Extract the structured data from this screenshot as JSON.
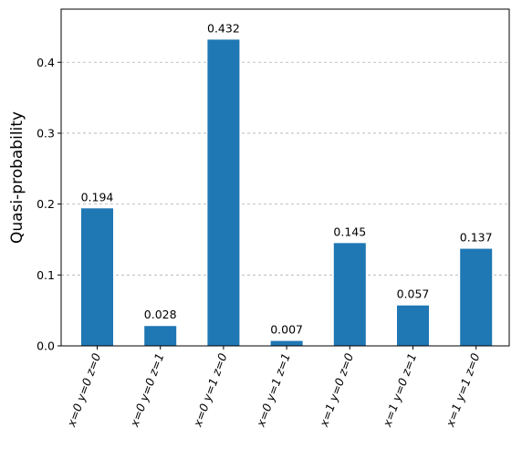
{
  "chart_data": {
    "type": "bar",
    "title": "",
    "xlabel": "",
    "ylabel": "Quasi-probability",
    "categories": [
      "x=0 y=0 z=0",
      "x=0 y=0 z=1",
      "x=0 y=1 z=0",
      "x=0 y=1 z=1",
      "x=1 y=0 z=0",
      "x=1 y=0 z=1",
      "x=1 y=1 z=0"
    ],
    "values": [
      0.194,
      0.028,
      0.432,
      0.007,
      0.145,
      0.057,
      0.137
    ],
    "data_labels": [
      "0.194",
      "0.028",
      "0.432",
      "0.007",
      "0.145",
      "0.057",
      "0.137"
    ],
    "ylim": [
      0,
      0.475
    ],
    "yticks": [
      0.0,
      0.1,
      0.2,
      0.3,
      0.4
    ],
    "ytick_labels": [
      "0.0",
      "0.1",
      "0.2",
      "0.3",
      "0.4"
    ],
    "grid": "horizontal-dashed",
    "bar_color": "#1f77b4",
    "grid_color": "#b0b0b0"
  }
}
